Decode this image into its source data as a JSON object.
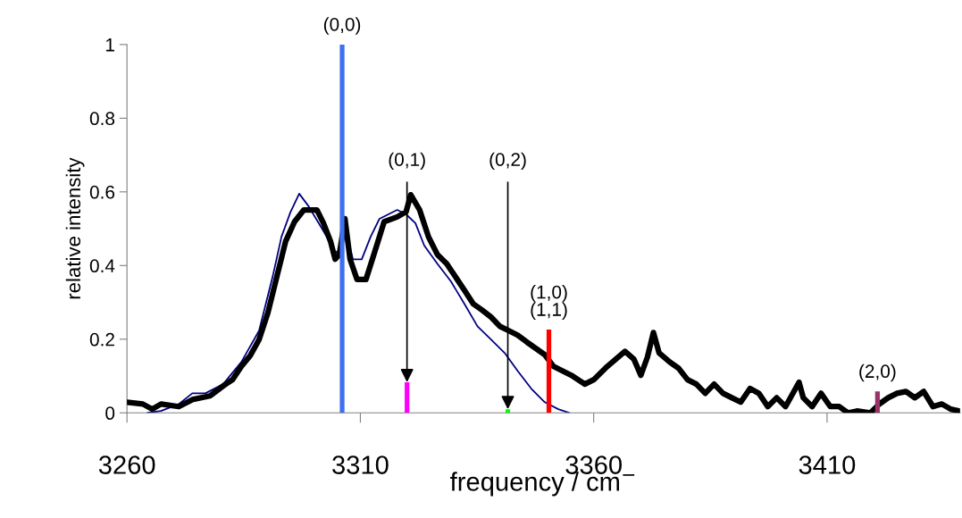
{
  "chart_data": {
    "type": "line",
    "xlabel": "frequency / cm$^{−}$",
    "ylabel": "relative intensity",
    "xlim": [
      3260,
      3438.5
    ],
    "xticks": [
      3260,
      3310,
      3360,
      3410
    ],
    "ylim": [
      0,
      1
    ],
    "yticks": [
      0,
      0.2,
      0.4,
      0.6,
      0.8,
      1
    ],
    "grid": false,
    "series": [
      {
        "color": "#000080",
        "x": [
          3264.4,
          3267.3,
          3271.1,
          3274.0,
          3276.8,
          3280.6,
          3284.5,
          3288.3,
          3291.2,
          3293.1,
          3295.0,
          3296.9,
          3298.8,
          3301.7,
          3303.6,
          3304.0,
          3305.5,
          3306.5,
          3308.4,
          3310.3,
          3312.2,
          3314.1,
          3316.0,
          3317.9,
          3319.8,
          3321.8,
          3323.7,
          3326.5,
          3329.4,
          3332.3,
          3335.1,
          3338.0,
          3340.9,
          3343.7,
          3346.6,
          3349.5,
          3352.4,
          3354.8
        ],
        "values": [
          0,
          0.005,
          0.024,
          0.053,
          0.053,
          0.078,
          0.138,
          0.223,
          0.369,
          0.478,
          0.544,
          0.595,
          0.563,
          0.502,
          0.461,
          0.43,
          0.442,
          0.515,
          0.417,
          0.417,
          0.478,
          0.527,
          0.539,
          0.551,
          0.539,
          0.515,
          0.454,
          0.405,
          0.357,
          0.296,
          0.235,
          0.199,
          0.163,
          0.114,
          0.066,
          0.029,
          0.01,
          0
        ]
      },
      {
        "color": "#000000",
        "x": [
          3260,
          3263.4,
          3265.4,
          3267.3,
          3271.1,
          3274.0,
          3277.8,
          3280.6,
          3282.6,
          3284.5,
          3286.4,
          3288.3,
          3290.2,
          3292.1,
          3294.0,
          3295.9,
          3297.9,
          3300.7,
          3302.1,
          3303.6,
          3304.6,
          3305.5,
          3306.7,
          3307.8,
          3309.3,
          3311.2,
          3313.2,
          3315.1,
          3317.9,
          3319.8,
          3320.8,
          3322.7,
          3324.6,
          3326.5,
          3328.5,
          3330.4,
          3332.3,
          3334.2,
          3336.1,
          3338.0,
          3339.9,
          3341.8,
          3343.7,
          3345.7,
          3347.6,
          3349.5,
          3351.4,
          3353.3,
          3355.2,
          3358.1,
          3360.0,
          3362.9,
          3366.7,
          3368.6,
          3370.1,
          3371.5,
          3372.8,
          3374.0,
          3376.3,
          3378.2,
          3380.1,
          3382.0,
          3383.9,
          3385.8,
          3387.7,
          3389.6,
          3391.5,
          3393.5,
          3395.4,
          3397.3,
          3399.2,
          3401.1,
          3404.0,
          3404.9,
          3406.8,
          3408.7,
          3410.7,
          3412.6,
          3414.5,
          3416.4,
          3419.3,
          3421.2,
          3423.1,
          3425.0,
          3426.9,
          3428.8,
          3430.7,
          3432.7,
          3434.6,
          3436.5,
          3438.4
        ],
        "values": [
          0.029,
          0.024,
          0.01,
          0.024,
          0.017,
          0.036,
          0.046,
          0.073,
          0.09,
          0.126,
          0.155,
          0.199,
          0.272,
          0.369,
          0.466,
          0.519,
          0.551,
          0.551,
          0.515,
          0.466,
          0.417,
          0.43,
          0.527,
          0.417,
          0.362,
          0.362,
          0.442,
          0.519,
          0.532,
          0.546,
          0.592,
          0.551,
          0.478,
          0.43,
          0.405,
          0.369,
          0.333,
          0.296,
          0.279,
          0.26,
          0.235,
          0.223,
          0.211,
          0.192,
          0.175,
          0.158,
          0.126,
          0.114,
          0.102,
          0.078,
          0.09,
          0.126,
          0.167,
          0.146,
          0.102,
          0.151,
          0.218,
          0.163,
          0.138,
          0.121,
          0.09,
          0.078,
          0.053,
          0.078,
          0.053,
          0.041,
          0.029,
          0.066,
          0.053,
          0.017,
          0.041,
          0.017,
          0.083,
          0.041,
          0.017,
          0.053,
          0.017,
          0.017,
          0,
          0.005,
          0,
          0.024,
          0.041,
          0.053,
          0.058,
          0.041,
          0.058,
          0.017,
          0.024,
          0.01,
          0.005
        ]
      },
      {
        "type": "bar",
        "x": [
          3306.1,
          3320.0,
          3341.6,
          3350.4,
          3420.8
        ],
        "values": [
          1,
          0.083,
          0.01,
          0.226,
          0.058
        ],
        "colors": [
          "#3f6ef0",
          "#ff00ff",
          "#00ff00",
          "#ff0000",
          "#993366"
        ]
      }
    ],
    "annotations": [
      {
        "text": "(0,0)",
        "x": 3306.1,
        "y": 1
      },
      {
        "text": "(0,1)",
        "x": 3320.0,
        "y": 0.083
      },
      {
        "text": "(0,2)",
        "x": 3341.6,
        "y": 0.01
      },
      {
        "text": "(1,0)\n(1,1)",
        "x": 3350.4,
        "y": 0.226
      },
      {
        "text": "(2,0)",
        "x": 3420.8,
        "y": 0.058
      }
    ]
  }
}
